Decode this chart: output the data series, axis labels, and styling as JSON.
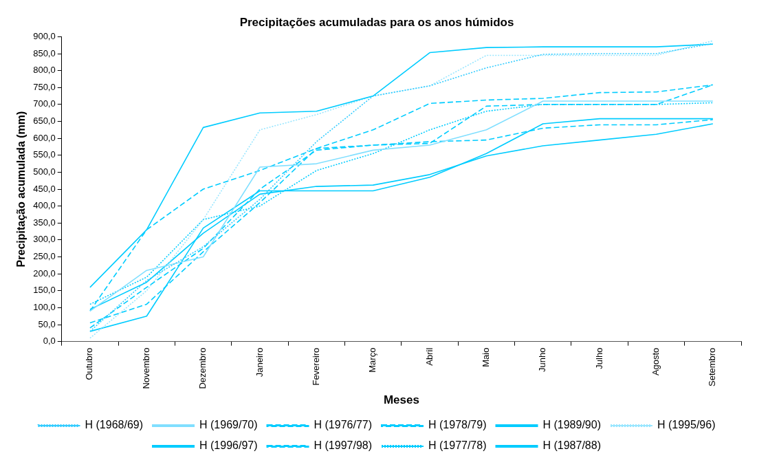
{
  "chart_data": {
    "type": "line",
    "title": "Precipitações acumuladas para os anos húmidos",
    "xlabel": "Meses",
    "ylabel": "Precipitação acumulada (mm)",
    "categories": [
      "Outubro",
      "Novembro",
      "Dezembro",
      "Janeiro",
      "Fevereiro",
      "Março",
      "Abril",
      "Maio",
      "Junho",
      "Julho",
      "Agosto",
      "Setembro"
    ],
    "ylim": [
      0,
      900
    ],
    "yticks": [
      {
        "value": 0,
        "label": "0,0"
      },
      {
        "value": 50,
        "label": "50,0"
      },
      {
        "value": 100,
        "label": "100,0"
      },
      {
        "value": 150,
        "label": "150,0"
      },
      {
        "value": 200,
        "label": "200,0"
      },
      {
        "value": 250,
        "label": "250,0"
      },
      {
        "value": 300,
        "label": "300,0"
      },
      {
        "value": 350,
        "label": "350,0"
      },
      {
        "value": 400,
        "label": "400,0"
      },
      {
        "value": 450,
        "label": "450,0"
      },
      {
        "value": 500,
        "label": "500,0"
      },
      {
        "value": 550,
        "label": "550,0"
      },
      {
        "value": 600,
        "label": "600,0"
      },
      {
        "value": 650,
        "label": "650,0"
      },
      {
        "value": 700,
        "label": "700,0"
      },
      {
        "value": 750,
        "label": "750,0"
      },
      {
        "value": 800,
        "label": "800,0"
      },
      {
        "value": 850,
        "label": "850,0"
      },
      {
        "value": 900,
        "label": "900,0"
      }
    ],
    "grid": false,
    "legend": "bottom",
    "marker": "none",
    "series": [
      {
        "name": "H (1968/69)",
        "color": "#33ccff",
        "line_style": "dotted",
        "values": [
          30,
          180,
          280,
          420,
          590,
          725,
          755,
          808,
          848,
          850,
          850,
          880
        ]
      },
      {
        "name": "H (1969/70)",
        "color": "#80dfff",
        "line_style": "solid",
        "values": [
          90,
          210,
          250,
          515,
          525,
          565,
          580,
          625,
          710,
          710,
          710,
          710
        ]
      },
      {
        "name": "H (1976/77)",
        "color": "#00ccff",
        "line_style": "dashed",
        "values": [
          40,
          160,
          275,
          450,
          565,
          580,
          590,
          595,
          630,
          640,
          640,
          655
        ]
      },
      {
        "name": "H (1978/79)",
        "color": "#00ccff",
        "line_style": "dashed",
        "values": [
          90,
          330,
          450,
          505,
          570,
          625,
          703,
          713,
          718,
          735,
          737,
          758
        ]
      },
      {
        "name": "H (1989/90)",
        "color": "#00ccff",
        "line_style": "solid",
        "values": [
          160,
          330,
          632,
          675,
          680,
          725,
          853,
          868,
          870,
          870,
          870,
          878
        ]
      },
      {
        "name": "H (1995/96)",
        "color": "#99e6ff",
        "line_style": "dotted",
        "values": [
          10,
          150,
          360,
          625,
          670,
          725,
          755,
          845,
          845,
          845,
          845,
          888
        ]
      },
      {
        "name": "H (1996/97)",
        "color": "#00ccff",
        "line_style": "solid",
        "values": [
          30,
          75,
          335,
          445,
          445,
          445,
          485,
          555,
          643,
          658,
          658,
          658
        ]
      },
      {
        "name": "H (1997/98)",
        "color": "#00ccff",
        "line_style": "dashed",
        "values": [
          55,
          110,
          265,
          410,
          570,
          580,
          585,
          695,
          700,
          700,
          700,
          758
        ]
      },
      {
        "name": "H (1977/78)",
        "color": "#00ccff",
        "line_style": "dotted",
        "values": [
          110,
          190,
          360,
          400,
          505,
          555,
          625,
          680,
          700,
          700,
          700,
          705
        ]
      },
      {
        "name": "H (1987/88)",
        "color": "#00ccff",
        "line_style": "solid",
        "values": [
          95,
          175,
          320,
          435,
          458,
          462,
          493,
          548,
          578,
          595,
          612,
          643
        ]
      }
    ]
  }
}
